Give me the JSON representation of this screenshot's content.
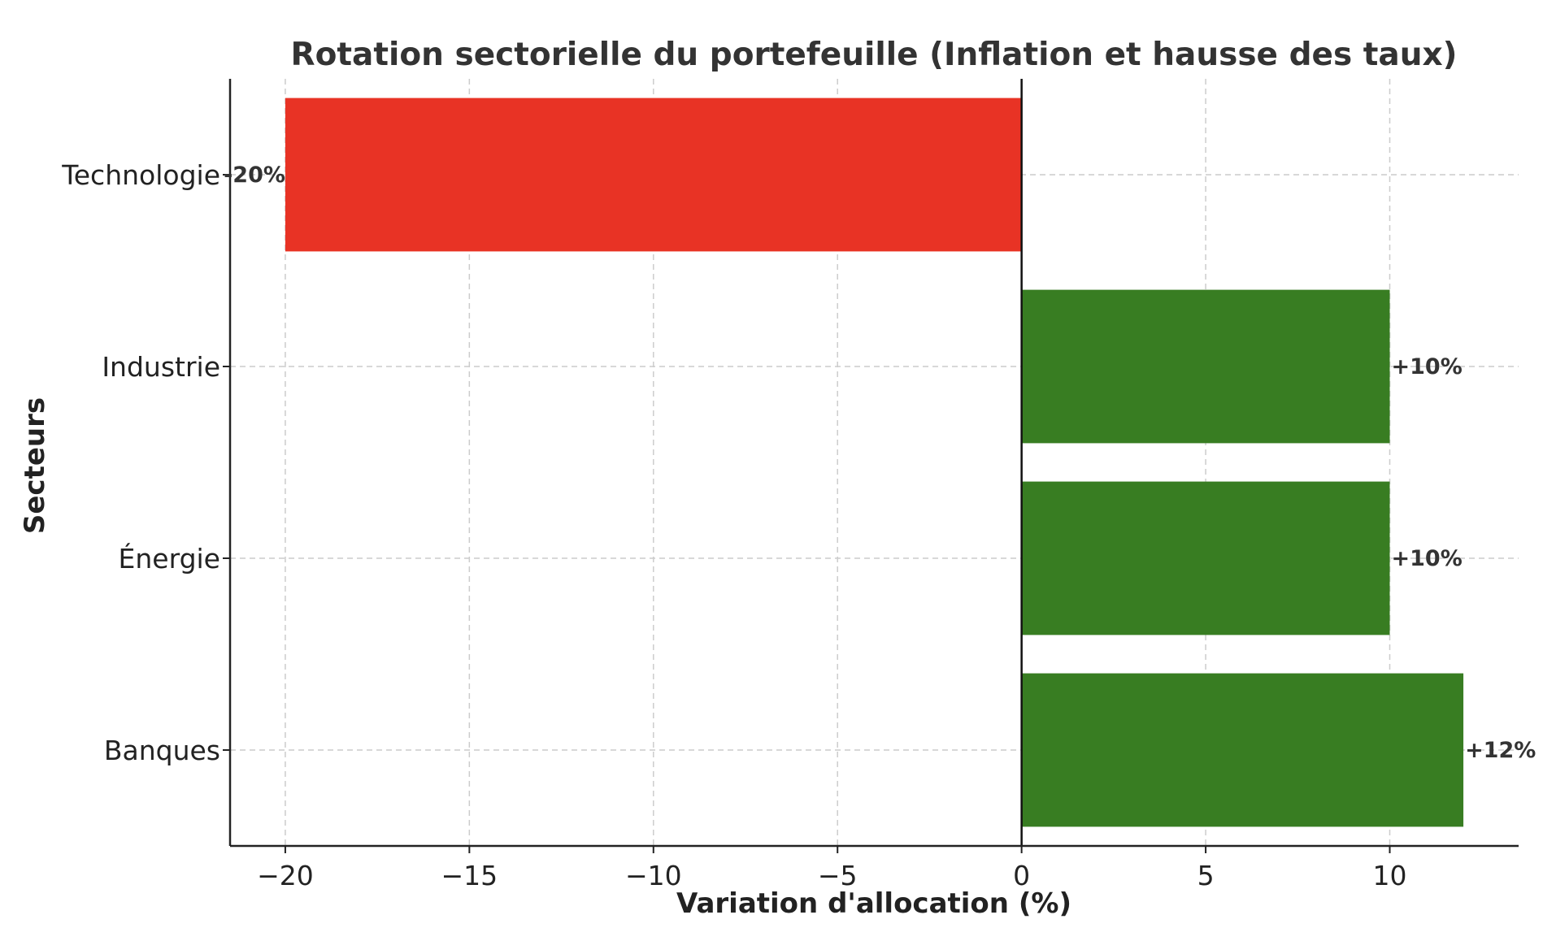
{
  "chart_data": {
    "type": "bar",
    "orientation": "horizontal",
    "title": "Rotation sectorielle du portefeuille (Inflation et hausse des taux)",
    "xlabel": "Variation d'allocation (%)",
    "ylabel": "Secteurs",
    "categories": [
      "Technologie",
      "Industrie",
      "Énergie",
      "Banques"
    ],
    "values": [
      -20,
      10,
      10,
      12
    ],
    "value_labels": [
      "-20%",
      "+10%",
      "+10%",
      "+12%"
    ],
    "xlim": [
      -21.5,
      13.5
    ],
    "xticks": [
      -20,
      -15,
      -10,
      -5,
      0,
      5,
      10
    ],
    "xtick_labels": [
      "−20",
      "−15",
      "−10",
      "−5",
      "0",
      "5",
      "10"
    ],
    "grid": true,
    "colors": {
      "negative": "#e83325",
      "positive": "#387d22"
    }
  }
}
